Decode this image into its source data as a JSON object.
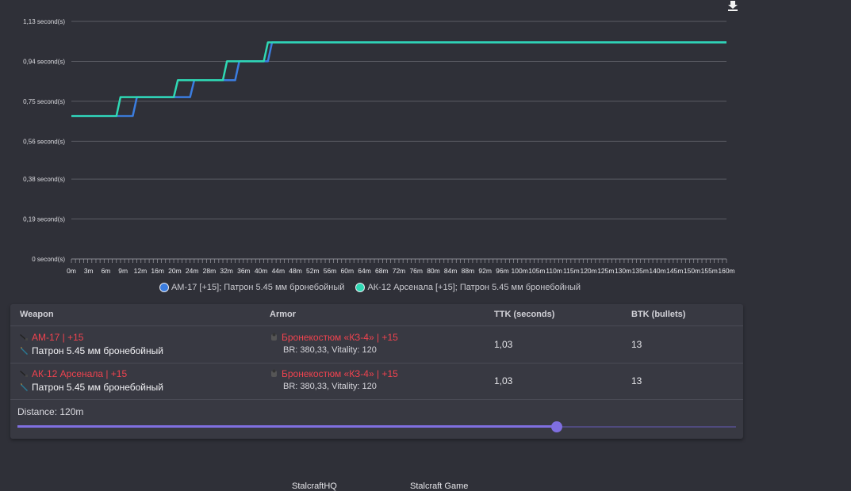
{
  "chart_data": {
    "type": "line",
    "x_labels": [
      "0m",
      "3m",
      "6m",
      "9m",
      "12m",
      "16m",
      "20m",
      "24m",
      "28m",
      "32m",
      "36m",
      "40m",
      "44m",
      "48m",
      "52m",
      "56m",
      "60m",
      "64m",
      "68m",
      "72m",
      "76m",
      "80m",
      "84m",
      "88m",
      "92m",
      "96m",
      "100m",
      "105m",
      "110m",
      "115m",
      "120m",
      "125m",
      "130m",
      "135m",
      "140m",
      "145m",
      "150m",
      "155m",
      "160m"
    ],
    "y_ticks": [
      0,
      0.19,
      0.38,
      0.56,
      0.75,
      0.94,
      1.13
    ],
    "y_tick_labels": [
      "0 second(s)",
      "0,19 second(s)",
      "0,38 second(s)",
      "0,56 second(s)",
      "0,75 second(s)",
      "0,94 second(s)",
      "1,13 second(s)"
    ],
    "ylim": [
      0,
      1.13
    ],
    "xlim": [
      0,
      160
    ],
    "grid": true,
    "legend_position": "bottom",
    "series": [
      {
        "name": "AM-17 [+15]; Патрон 5.45 мм бронебойный",
        "color": "#3b7de0",
        "points": [
          [
            0,
            0.68
          ],
          [
            15,
            0.68
          ],
          [
            16,
            0.77
          ],
          [
            29,
            0.77
          ],
          [
            30,
            0.85
          ],
          [
            40,
            0.85
          ],
          [
            41,
            0.94
          ],
          [
            48,
            0.94
          ],
          [
            49,
            1.03
          ],
          [
            160,
            1.03
          ]
        ]
      },
      {
        "name": "АК-12 Арсенала [+15]; Патрон 5.45 мм бронебойный",
        "color": "#2fd8b4",
        "points": [
          [
            0,
            0.68
          ],
          [
            11,
            0.68
          ],
          [
            12,
            0.77
          ],
          [
            25,
            0.77
          ],
          [
            26,
            0.85
          ],
          [
            37,
            0.85
          ],
          [
            38,
            0.94
          ],
          [
            47,
            0.94
          ],
          [
            48,
            1.03
          ],
          [
            160,
            1.03
          ]
        ]
      }
    ]
  },
  "icons": {
    "download": "download-icon",
    "weapon": "rifle-icon",
    "ammo": "bullet-icon",
    "armor": "armor-icon"
  },
  "table": {
    "headers": {
      "weapon": "Weapon",
      "armor": "Armor",
      "ttk": "TTK (seconds)",
      "btk": "BTK (bullets)"
    },
    "rows": [
      {
        "weapon": "AM-17 | +15",
        "ammo": "Патрон 5.45 мм бронебойный",
        "armor": "Бронекостюм «КЗ-4» | +15",
        "armor_stats": "BR: 380,33, Vitality: 120",
        "ttk": "1,03",
        "btk": "13"
      },
      {
        "weapon": "АК-12 Арсенала | +15",
        "ammo": "Патрон 5.45 мм бронебойный",
        "armor": "Бронекостюм «КЗ-4» | +15",
        "armor_stats": "BR: 380,33, Vitality: 120",
        "ttk": "1,03",
        "btk": "13"
      }
    ]
  },
  "distance": {
    "label": "Distance: 120m",
    "value": 120,
    "min": 0,
    "max": 160
  },
  "footer": {
    "link1": "StalcraftHQ",
    "link2": "Stalcraft Game"
  }
}
